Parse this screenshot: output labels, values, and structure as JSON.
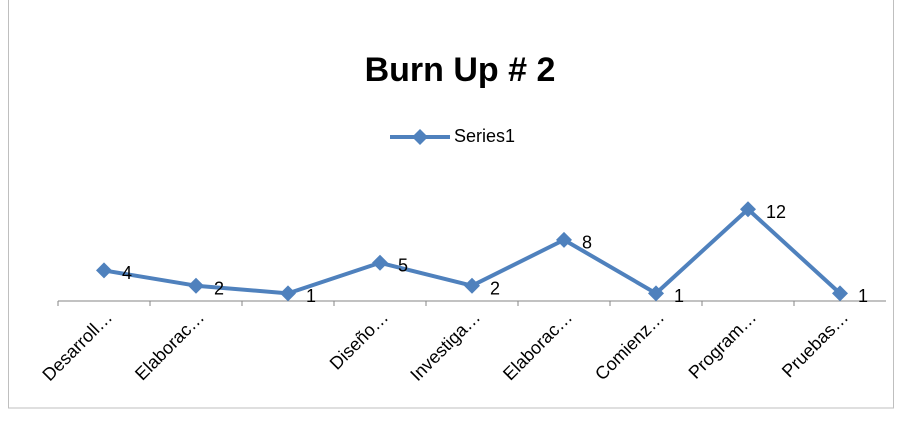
{
  "chart_data": {
    "type": "line",
    "title": "Burn Up # 2",
    "categories": [
      "Desarroll…",
      "Elaborac…",
      null,
      "Diseño…",
      "Investiga…",
      "Elaborac…",
      "Comienz…",
      "Program…",
      "Pruebas…"
    ],
    "series": [
      {
        "name": "Series1",
        "color": "#4f81bd",
        "values": [
          4,
          2,
          1,
          5,
          2,
          8,
          1,
          12,
          1
        ]
      }
    ],
    "ylim": [
      0,
      14
    ],
    "legend": "top"
  }
}
